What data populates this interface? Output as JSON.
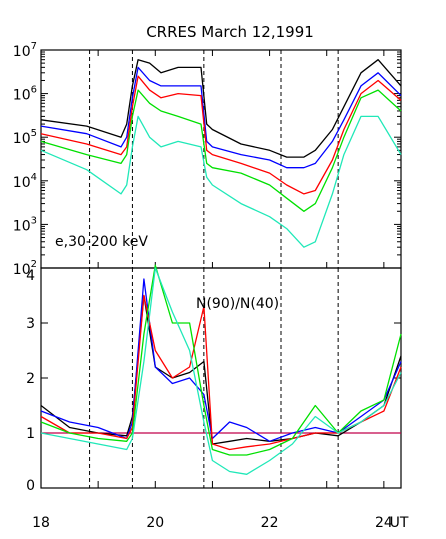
{
  "chart_data": [
    {
      "type": "line",
      "title": "CRRES  March 12,1991",
      "annotation": "e,30-200 keV",
      "y_scale": "log",
      "ylim": [
        100,
        10000000
      ],
      "y_ticks": [
        {
          "value": 100,
          "base": "10",
          "exp": "2"
        },
        {
          "value": 1000,
          "base": "10",
          "exp": "3"
        },
        {
          "value": 10000,
          "base": "10",
          "exp": "4"
        },
        {
          "value": 100000,
          "base": "10",
          "exp": "5"
        },
        {
          "value": 1000000,
          "base": "10",
          "exp": "6"
        },
        {
          "value": 10000000,
          "base": "10",
          "exp": "7"
        }
      ],
      "x": [
        18.0,
        18.8,
        19.4,
        19.5,
        19.6,
        19.7,
        19.9,
        20.1,
        20.4,
        20.8,
        20.9,
        21.0,
        21.5,
        22.0,
        22.3,
        22.6,
        22.8,
        23.1,
        23.3,
        23.6,
        23.9,
        24.3
      ],
      "series": [
        {
          "color": "#000000",
          "values": [
            250000,
            180000,
            100000,
            200000,
            1500000,
            6000000,
            5000000,
            3000000,
            4000000,
            4000000,
            200000,
            150000,
            70000,
            50000,
            35000,
            35000,
            50000,
            150000,
            500000,
            3000000,
            6000000,
            1500000
          ]
        },
        {
          "color": "#0000ff",
          "values": [
            180000,
            120000,
            60000,
            100000,
            800000,
            4000000,
            2000000,
            1500000,
            1500000,
            1500000,
            80000,
            60000,
            40000,
            30000,
            20000,
            20000,
            25000,
            80000,
            250000,
            1500000,
            3000000,
            900000
          ]
        },
        {
          "color": "#ff0000",
          "values": [
            120000,
            70000,
            40000,
            60000,
            500000,
            2500000,
            1200000,
            800000,
            1000000,
            900000,
            50000,
            40000,
            25000,
            15000,
            8000,
            5000,
            6000,
            30000,
            150000,
            1000000,
            2000000,
            700000
          ]
        },
        {
          "color": "#00e000",
          "values": [
            80000,
            40000,
            25000,
            40000,
            300000,
            1200000,
            600000,
            400000,
            300000,
            200000,
            25000,
            20000,
            15000,
            8000,
            4000,
            2000,
            3000,
            20000,
            100000,
            800000,
            1200000,
            400000
          ]
        },
        {
          "color": "#20e8b8",
          "values": [
            50000,
            18000,
            5000,
            8000,
            60000,
            300000,
            100000,
            60000,
            80000,
            60000,
            12000,
            8000,
            3000,
            1500,
            800,
            300,
            400,
            5000,
            40000,
            300000,
            300000,
            40000
          ]
        }
      ]
    },
    {
      "type": "line",
      "annotation": "N(90)/N(40)",
      "xlim": [
        18,
        24.3
      ],
      "ylim": [
        0,
        4
      ],
      "x_ticks": [
        "18",
        "20",
        "22",
        "24"
      ],
      "x_unit": "UT",
      "y_ticks": [
        "0",
        "1",
        "2",
        "3",
        "4"
      ],
      "reference_y": 1,
      "vertical_markers": [
        18.85,
        19.6,
        20.85,
        22.2,
        23.2
      ],
      "x": [
        18.0,
        18.5,
        19.0,
        19.5,
        19.6,
        19.8,
        20.0,
        20.3,
        20.6,
        20.85,
        21.0,
        21.3,
        21.6,
        22.0,
        22.4,
        22.8,
        23.2,
        23.6,
        24.0,
        24.3
      ],
      "series": [
        {
          "color": "#000000",
          "values": [
            1.5,
            1.1,
            1.0,
            0.95,
            1.3,
            3.5,
            2.2,
            2.0,
            2.1,
            2.3,
            0.8,
            0.85,
            0.9,
            0.85,
            0.9,
            1.0,
            0.95,
            1.2,
            1.5,
            2.4
          ]
        },
        {
          "color": "#0000ff",
          "values": [
            1.4,
            1.2,
            1.1,
            0.9,
            1.2,
            3.8,
            2.2,
            1.9,
            2.0,
            1.7,
            0.9,
            1.2,
            1.1,
            0.85,
            1.0,
            1.1,
            1.0,
            1.3,
            1.6,
            2.3
          ]
        },
        {
          "color": "#ff0000",
          "values": [
            1.3,
            1.0,
            1.0,
            0.9,
            1.1,
            3.5,
            2.5,
            2.0,
            2.2,
            3.3,
            0.8,
            0.7,
            0.75,
            0.8,
            0.9,
            1.0,
            1.0,
            1.2,
            1.4,
            2.2
          ]
        },
        {
          "color": "#00e000",
          "values": [
            1.2,
            1.0,
            0.9,
            0.85,
            1.0,
            2.8,
            4.2,
            3.0,
            3.0,
            1.5,
            0.7,
            0.6,
            0.6,
            0.7,
            0.9,
            1.5,
            1.0,
            1.4,
            1.6,
            2.8
          ]
        },
        {
          "color": "#20e8b8",
          "values": [
            1.0,
            0.9,
            0.8,
            0.7,
            0.9,
            2.3,
            4.0,
            3.2,
            2.5,
            1.2,
            0.5,
            0.3,
            0.25,
            0.5,
            0.8,
            1.3,
            1.0,
            1.2,
            1.5,
            2.1
          ]
        }
      ]
    }
  ]
}
